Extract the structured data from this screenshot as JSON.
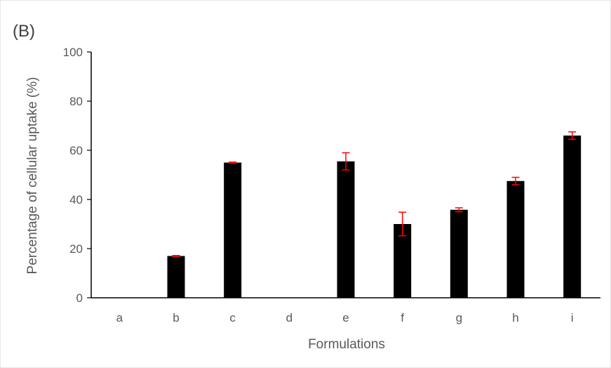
{
  "panel_label": "(B)",
  "colors": {
    "bar": "#000000",
    "error_bar": "#ff0000",
    "axis": "#000000",
    "text": "#595959",
    "frame": "#d9d9d9"
  },
  "chart_data": {
    "type": "bar",
    "title": "",
    "xlabel": "Formulations",
    "ylabel": "Percentage of cellular uptake (%)",
    "categories": [
      "a",
      "b",
      "c",
      "d",
      "e",
      "f",
      "g",
      "h",
      "i"
    ],
    "values": [
      0,
      17,
      55,
      0,
      55.5,
      30,
      35.8,
      47.5,
      66
    ],
    "errors": [
      0,
      0.2,
      0.2,
      0,
      3.5,
      4.8,
      0.8,
      1.5,
      1.5
    ],
    "ylim": [
      0,
      100
    ],
    "yticks": [
      0,
      20,
      40,
      60,
      80,
      100
    ],
    "grid": false,
    "legend": "none"
  }
}
